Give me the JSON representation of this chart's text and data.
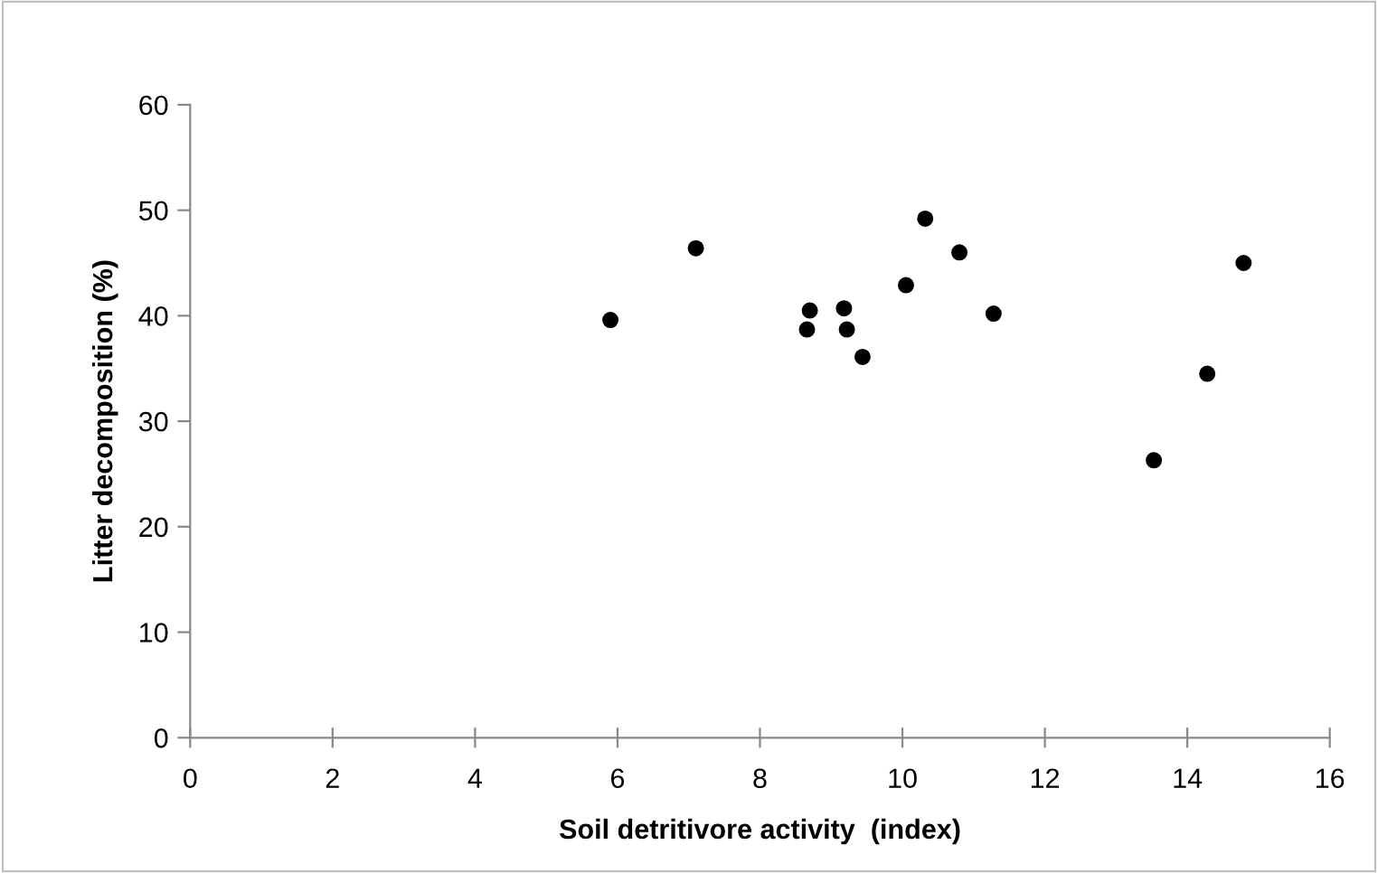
{
  "chart_data": {
    "type": "scatter",
    "xlabel": "Soil detritivore activity  (index)",
    "ylabel": "Litter decomposition (%)",
    "x": [
      5.9,
      7.1,
      8.66,
      8.7,
      9.18,
      9.22,
      9.44,
      10.05,
      10.32,
      10.8,
      11.28,
      13.53,
      14.28,
      14.79
    ],
    "values": [
      39.6,
      46.4,
      38.7,
      40.5,
      40.7,
      38.7,
      36.1,
      42.9,
      49.2,
      46.0,
      40.2,
      26.3,
      34.5,
      45.0
    ],
    "color": "#000000",
    "marker": "circle",
    "xlim": [
      0,
      16
    ],
    "xticks": [
      0,
      2,
      4,
      6,
      8,
      10,
      12,
      14,
      16
    ],
    "ylim": [
      0,
      60
    ],
    "yticks": [
      0,
      10,
      20,
      30,
      40,
      50,
      60
    ],
    "grid": false,
    "legend": false
  }
}
